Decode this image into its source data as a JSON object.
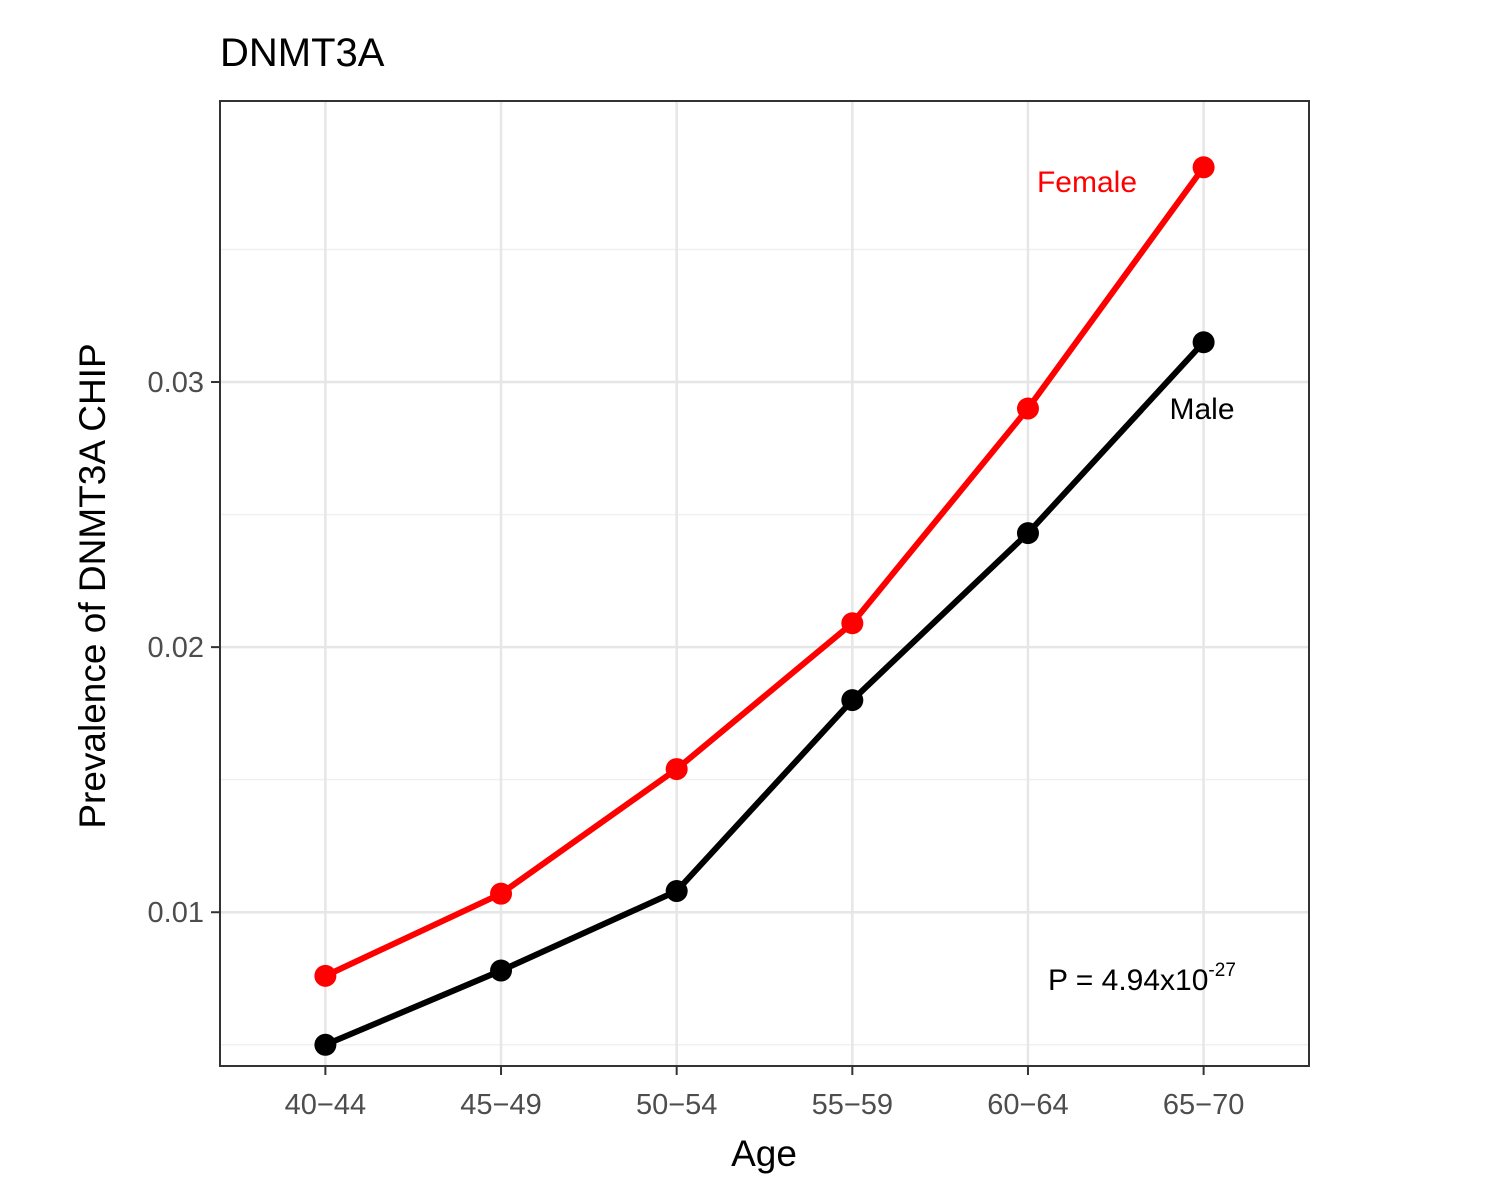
{
  "chart_data": {
    "type": "line",
    "title": "DNMT3A",
    "xlabel": "Age",
    "ylabel": "Prevalence of DNMT3A CHIP",
    "categories": [
      "40−44",
      "45−49",
      "50−54",
      "55−59",
      "60−64",
      "65−70"
    ],
    "ylim": [
      0.0042,
      0.0406
    ],
    "yticks": [
      0.01,
      0.02,
      0.03
    ],
    "ytick_labels": [
      "0.01",
      "0.02",
      "0.03"
    ],
    "grid": true,
    "series": [
      {
        "name": "Female",
        "color": "#ff0000",
        "values": [
          0.0076,
          0.0107,
          0.0154,
          0.0209,
          0.029,
          0.0381
        ]
      },
      {
        "name": "Male",
        "color": "#000000",
        "values": [
          0.005,
          0.0078,
          0.0108,
          0.018,
          0.0243,
          0.0315
        ]
      }
    ],
    "annotation": {
      "base": "P = 4.94x10",
      "exponent": "-27"
    }
  }
}
